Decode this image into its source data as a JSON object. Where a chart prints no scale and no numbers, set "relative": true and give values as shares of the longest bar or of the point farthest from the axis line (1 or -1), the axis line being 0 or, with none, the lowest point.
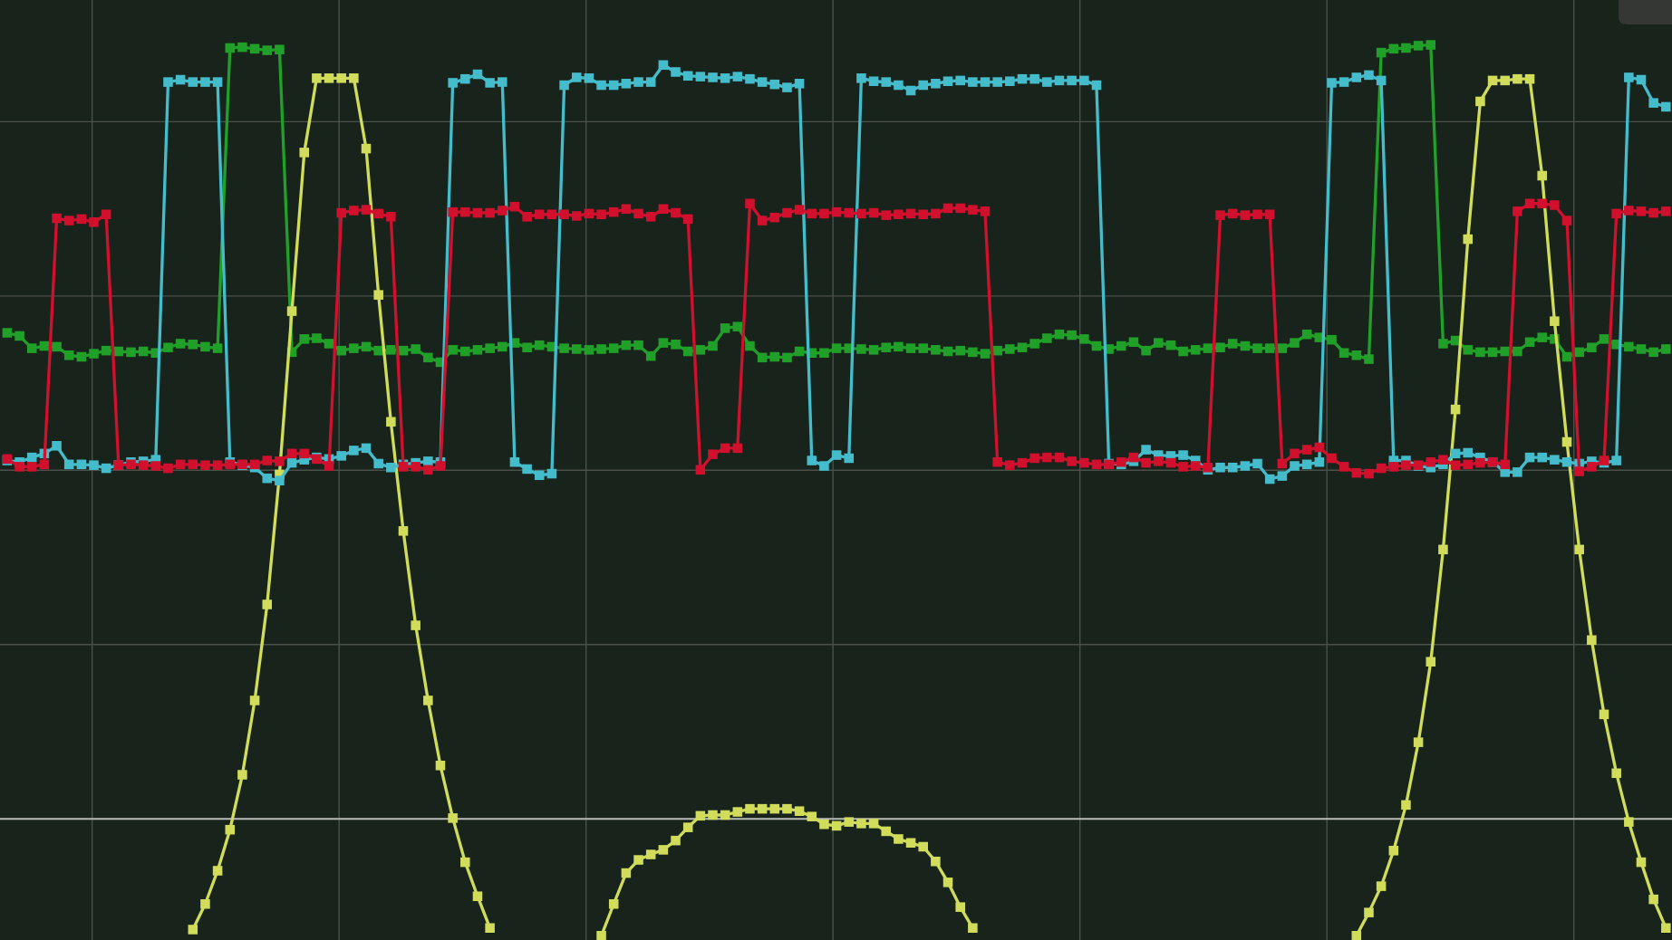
{
  "chart_data": {
    "type": "line",
    "relative": true,
    "categories": [
      null,
      null,
      null,
      null,
      null,
      null,
      null,
      null,
      null,
      null,
      null,
      null,
      null,
      null,
      null,
      null,
      null,
      null,
      null,
      null,
      null,
      null,
      null,
      null,
      null,
      null,
      null,
      null,
      null,
      null,
      null,
      null,
      null,
      null,
      null,
      null,
      null,
      null,
      null,
      null,
      null,
      null,
      null,
      null,
      null,
      null,
      null,
      null,
      null,
      null,
      null,
      null,
      null,
      null,
      null,
      null,
      null,
      null,
      null,
      null,
      null,
      null,
      null,
      null,
      null,
      null,
      null,
      null,
      null,
      null,
      null,
      null,
      null,
      null,
      null,
      null,
      null,
      null,
      null,
      null,
      null,
      null,
      null,
      null,
      null,
      null,
      null,
      null,
      null,
      null,
      null,
      null,
      null,
      null,
      null,
      null,
      null,
      null,
      null,
      null,
      null,
      null,
      null,
      null,
      null,
      null,
      null,
      null,
      null,
      null,
      null,
      null,
      null,
      null,
      null,
      null,
      null,
      null,
      null,
      null,
      null,
      null,
      null,
      null,
      null,
      null,
      null,
      null,
      null,
      null,
      null,
      null,
      null,
      null,
      null
    ],
    "series": [
      {
        "color": "#20a028",
        "values": [
          0.628,
          0.624,
          0.608,
          0.611,
          0.61,
          0.599,
          0.597,
          0.601,
          0.605,
          0.604,
          0.603,
          0.604,
          0.602,
          0.609,
          0.614,
          0.613,
          0.61,
          0.608,
          0.996,
          0.997,
          0.995,
          0.993,
          0.994,
          0.603,
          0.62,
          0.621,
          0.614,
          0.605,
          0.608,
          0.61,
          0.605,
          0.606,
          0.605,
          0.607,
          0.596,
          0.59,
          0.606,
          0.604,
          0.606,
          0.608,
          0.61,
          0.615,
          0.609,
          0.612,
          0.61,
          0.608,
          0.607,
          0.606,
          0.607,
          0.608,
          0.612,
          0.612,
          0.598,
          0.615,
          0.613,
          0.604,
          0.606,
          0.611,
          0.634,
          0.636,
          0.611,
          0.596,
          0.597,
          0.596,
          0.604,
          0.602,
          0.602,
          0.608,
          0.608,
          0.607,
          0.606,
          0.609,
          0.61,
          0.608,
          0.608,
          0.606,
          0.604,
          0.605,
          0.603,
          0.601,
          0.605,
          0.607,
          0.609,
          0.614,
          0.621,
          0.626,
          0.625,
          0.62,
          0.611,
          0.607,
          0.611,
          0.616,
          0.605,
          0.615,
          0.612,
          0.604,
          0.606,
          0.608,
          0.609,
          0.614,
          0.611,
          0.608,
          0.608,
          0.608,
          0.615,
          0.626,
          0.622,
          0.619,
          0.602,
          0.599,
          0.594,
          0.99,
          0.995,
          0.996,
          0.999,
          1.0,
          0.614,
          0.618,
          0.606,
          0.603,
          0.603,
          0.604,
          0.604,
          0.616,
          0.622,
          0.62,
          0.597,
          0.603,
          0.609,
          0.62,
          0.613,
          0.61,
          0.607,
          0.603,
          0.607
        ]
      },
      {
        "color": "#d0dc5a",
        "values": [
          null,
          null,
          null,
          null,
          null,
          null,
          null,
          null,
          null,
          null,
          null,
          null,
          null,
          null,
          null,
          -0.143,
          -0.11,
          -0.067,
          -0.014,
          0.057,
          0.153,
          0.277,
          0.445,
          0.656,
          0.861,
          0.957,
          0.957,
          0.957,
          0.957,
          0.866,
          0.677,
          0.513,
          0.372,
          0.25,
          0.153,
          0.069,
          0.001,
          -0.056,
          -0.1,
          -0.141,
          null,
          null,
          null,
          null,
          null,
          null,
          null,
          null,
          -0.151,
          -0.11,
          -0.07,
          -0.053,
          -0.046,
          -0.04,
          -0.028,
          -0.011,
          0.004,
          0.005,
          0.005,
          0.009,
          0.013,
          0.013,
          0.013,
          0.013,
          0.01,
          0.003,
          -0.007,
          -0.009,
          -0.004,
          -0.006,
          -0.006,
          -0.016,
          -0.026,
          -0.031,
          -0.036,
          -0.055,
          -0.082,
          -0.114,
          -0.141,
          null,
          null,
          null,
          null,
          null,
          null,
          null,
          null,
          null,
          null,
          null,
          null,
          null,
          null,
          null,
          null,
          null,
          null,
          null,
          null,
          null,
          null,
          null,
          null,
          null,
          null,
          null,
          null,
          null,
          null,
          -0.151,
          -0.121,
          -0.087,
          -0.041,
          0.018,
          0.099,
          0.203,
          0.348,
          0.529,
          0.749,
          0.927,
          0.954,
          0.954,
          0.956,
          0.956,
          0.831,
          0.643,
          0.487,
          0.348,
          0.231,
          0.135,
          0.059,
          -0.004,
          -0.056,
          -0.104,
          -0.141
        ]
      },
      {
        "color": "#45bccb",
        "values": [
          0.463,
          0.461,
          0.467,
          0.472,
          0.482,
          0.458,
          0.458,
          0.457,
          0.453,
          0.457,
          0.461,
          0.462,
          0.464,
          0.952,
          0.955,
          0.952,
          0.952,
          0.952,
          0.461,
          0.457,
          0.454,
          0.44,
          0.437,
          0.46,
          0.464,
          0.467,
          0.465,
          0.469,
          0.476,
          0.479,
          0.459,
          0.454,
          0.458,
          0.46,
          0.462,
          0.461,
          0.951,
          0.956,
          0.962,
          0.951,
          0.952,
          0.461,
          0.452,
          0.444,
          0.446,
          0.948,
          0.958,
          0.957,
          0.948,
          0.948,
          0.95,
          0.952,
          0.952,
          0.974,
          0.965,
          0.96,
          0.959,
          0.958,
          0.957,
          0.959,
          0.956,
          0.952,
          0.949,
          0.945,
          0.95,
          0.463,
          0.456,
          0.47,
          0.466,
          0.957,
          0.953,
          0.952,
          0.948,
          0.941,
          0.948,
          0.95,
          0.953,
          0.954,
          0.952,
          0.952,
          0.952,
          0.953,
          0.956,
          0.956,
          0.952,
          0.954,
          0.954,
          0.954,
          0.948,
          0.459,
          0.458,
          0.462,
          0.477,
          0.47,
          0.469,
          0.47,
          0.463,
          0.451,
          0.454,
          0.454,
          0.456,
          0.459,
          0.439,
          0.443,
          0.456,
          0.458,
          0.461,
          0.951,
          0.952,
          0.958,
          0.961,
          0.954,
          0.463,
          0.463,
          0.456,
          0.454,
          0.458,
          0.472,
          0.473,
          0.467,
          0.461,
          0.448,
          0.448,
          0.467,
          0.467,
          0.464,
          0.461,
          0.459,
          0.462,
          0.46,
          0.463,
          0.958,
          0.955,
          0.925,
          0.92
        ]
      },
      {
        "color": "#d0102c",
        "values": [
          0.465,
          0.455,
          0.455,
          0.458,
          0.776,
          0.773,
          0.775,
          0.771,
          0.781,
          0.457,
          0.458,
          0.457,
          0.456,
          0.453,
          0.458,
          0.458,
          0.457,
          0.457,
          0.458,
          0.458,
          0.458,
          0.463,
          0.462,
          0.472,
          0.472,
          0.465,
          0.456,
          0.783,
          0.786,
          0.787,
          0.782,
          0.778,
          0.455,
          0.455,
          0.451,
          0.456,
          0.784,
          0.784,
          0.783,
          0.783,
          0.786,
          0.791,
          0.778,
          0.781,
          0.781,
          0.781,
          0.779,
          0.782,
          0.781,
          0.784,
          0.788,
          0.782,
          0.778,
          0.788,
          0.783,
          0.775,
          0.451,
          0.471,
          0.479,
          0.479,
          0.795,
          0.773,
          0.777,
          0.783,
          0.787,
          0.782,
          0.782,
          0.784,
          0.783,
          0.782,
          0.783,
          0.78,
          0.781,
          0.782,
          0.781,
          0.782,
          0.789,
          0.789,
          0.787,
          0.785,
          0.461,
          0.457,
          0.46,
          0.466,
          0.467,
          0.467,
          0.462,
          0.46,
          0.458,
          0.458,
          0.461,
          0.467,
          0.46,
          0.462,
          0.46,
          0.455,
          0.456,
          0.454,
          0.78,
          0.782,
          0.78,
          0.781,
          0.781,
          0.459,
          0.472,
          0.477,
          0.48,
          0.466,
          0.455,
          0.447,
          0.446,
          0.453,
          0.455,
          0.457,
          0.457,
          0.461,
          0.464,
          0.457,
          0.458,
          0.46,
          0.461,
          0.458,
          0.785,
          0.795,
          0.795,
          0.793,
          0.773,
          0.449,
          0.455,
          0.463,
          0.782,
          0.786,
          0.785,
          0.783,
          0.785
        ]
      }
    ],
    "grid": true,
    "marker": "square",
    "line_style": "solid"
  }
}
